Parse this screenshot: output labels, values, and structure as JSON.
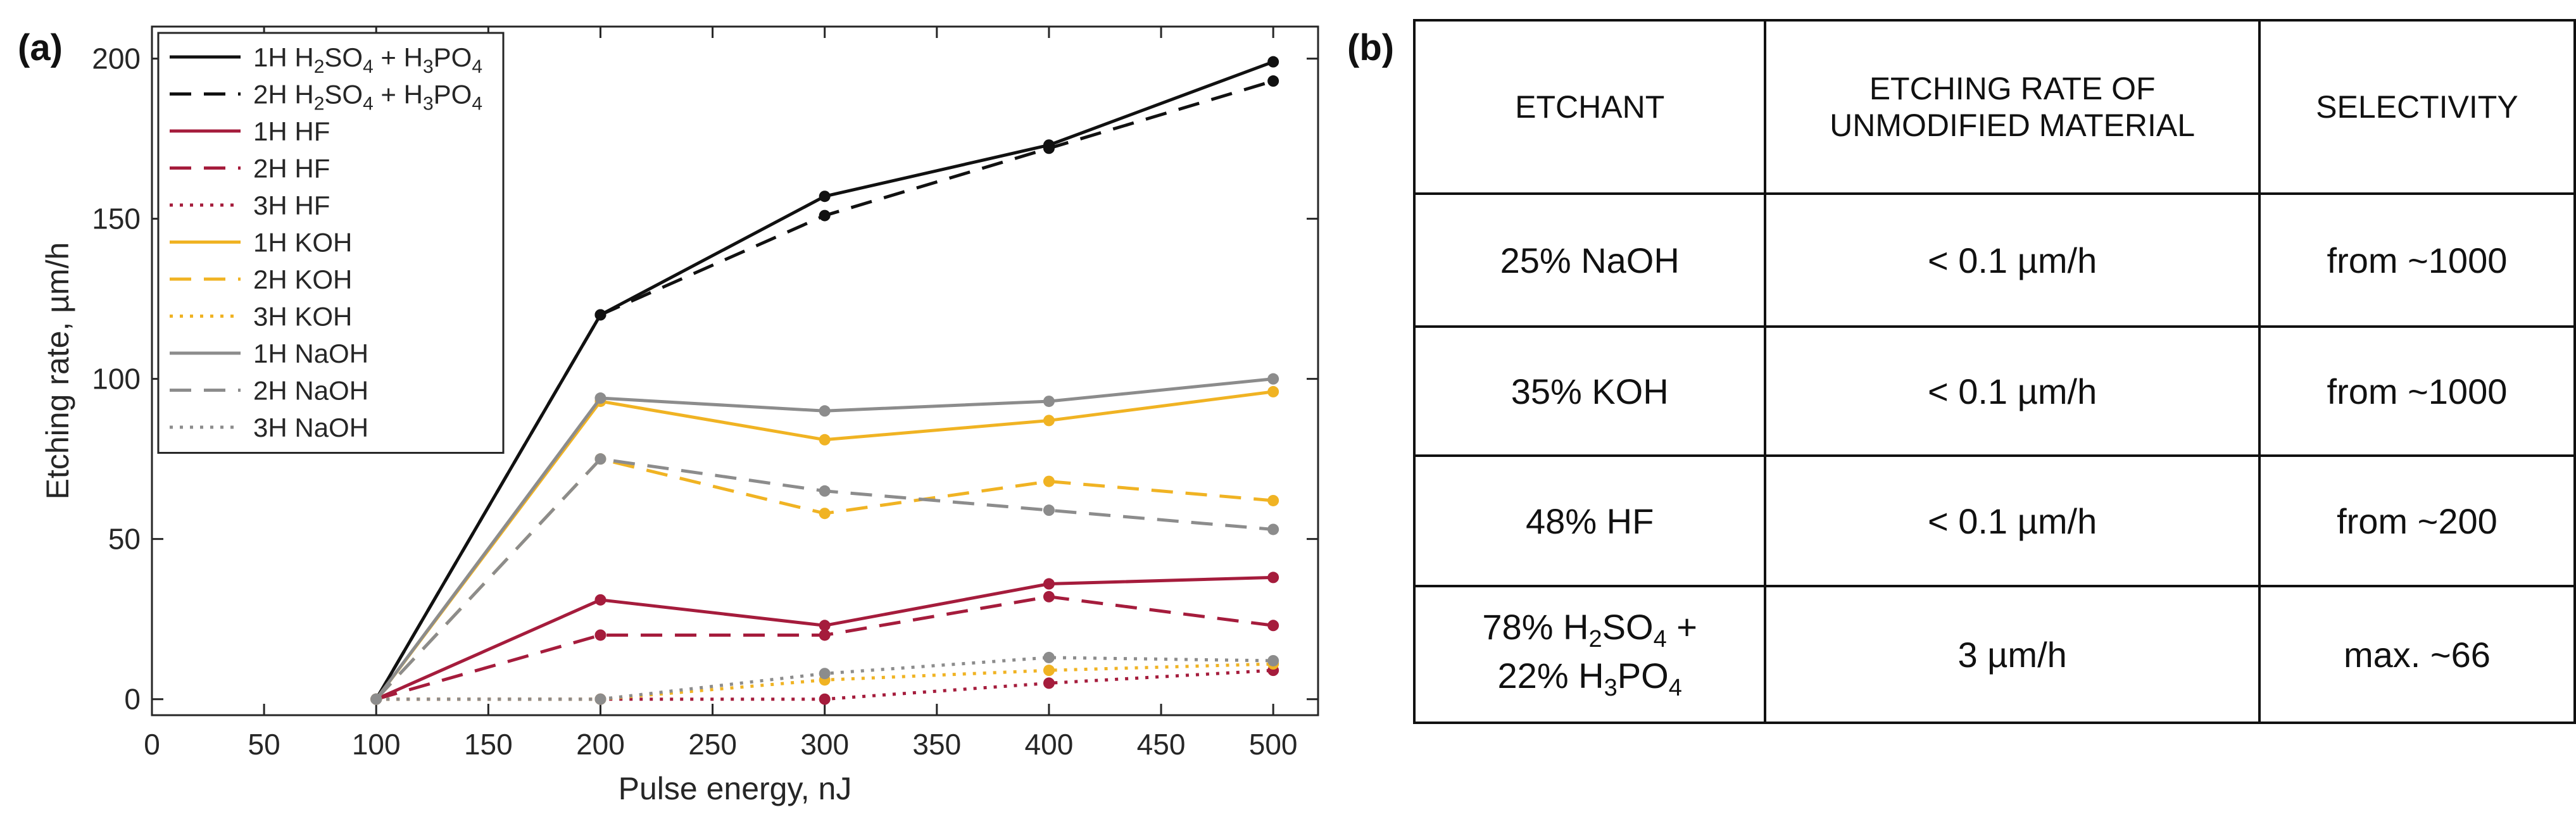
{
  "panel_a_label": "(a)",
  "panel_b_label": "(b)",
  "chart_data": {
    "type": "line",
    "title": "",
    "xlabel": "Pulse energy, nJ",
    "ylabel": "Etching rate, µm/h",
    "xlim": [
      0,
      520
    ],
    "ylim": [
      -5,
      210
    ],
    "xticks": [
      0,
      50,
      100,
      150,
      200,
      250,
      300,
      350,
      400,
      450,
      500
    ],
    "yticks": [
      0,
      50,
      100,
      150,
      200
    ],
    "x": [
      100,
      200,
      300,
      400,
      500
    ],
    "legend_position": "top-left",
    "series": [
      {
        "name": "1H H2SO4 + H3PO4",
        "label_main": "1H H",
        "label_parts": [
          "2",
          "SO",
          "4",
          " + H",
          "3",
          "PO",
          "4"
        ],
        "color": "#111111",
        "dash": "solid",
        "values": [
          0,
          120,
          157,
          173,
          199
        ]
      },
      {
        "name": "2H H2SO4 + H3PO4",
        "label_main": "2H H",
        "label_parts": [
          "2",
          "SO",
          "4",
          " + H",
          "3",
          "PO",
          "4"
        ],
        "color": "#111111",
        "dash": "dashed",
        "values": [
          0,
          120,
          151,
          172,
          193
        ]
      },
      {
        "name": "1H HF",
        "color": "#a51c3c",
        "dash": "solid",
        "values": [
          0,
          31,
          23,
          36,
          38
        ]
      },
      {
        "name": "2H HF",
        "color": "#a51c3c",
        "dash": "dashed",
        "values": [
          0,
          20,
          20,
          32,
          23
        ]
      },
      {
        "name": "3H HF",
        "color": "#a51c3c",
        "dash": "dotted",
        "values": [
          0,
          0,
          0,
          5,
          9
        ]
      },
      {
        "name": "1H KOH",
        "color": "#f0b323",
        "dash": "solid",
        "values": [
          0,
          93,
          81,
          87,
          96
        ]
      },
      {
        "name": "2H KOH",
        "color": "#f0b323",
        "dash": "dashed",
        "values": [
          0,
          75,
          58,
          68,
          62
        ]
      },
      {
        "name": "3H KOH",
        "color": "#f0b323",
        "dash": "dotted",
        "values": [
          0,
          0,
          6,
          9,
          11
        ]
      },
      {
        "name": "1H NaOH",
        "color": "#8c8c8c",
        "dash": "solid",
        "values": [
          0,
          94,
          90,
          93,
          100
        ]
      },
      {
        "name": "2H NaOH",
        "color": "#8c8c8c",
        "dash": "dashed",
        "values": [
          0,
          75,
          65,
          59,
          53
        ]
      },
      {
        "name": "3H NaOH",
        "color": "#8c8c8c",
        "dash": "dotted",
        "values": [
          0,
          0,
          8,
          13,
          12
        ]
      }
    ]
  },
  "table": {
    "headers": [
      "ETCHANT",
      "ETCHING RATE OF",
      "UNMODIFIED MATERIAL",
      "SELECTIVITY"
    ],
    "rows": [
      {
        "etchant": "25% NaOH",
        "rate": "< 0.1 µm/h",
        "selectivity": "from  ~1000"
      },
      {
        "etchant": "35% KOH",
        "rate": "< 0.1 µm/h",
        "selectivity": "from  ~1000"
      },
      {
        "etchant": "48% HF",
        "rate": "< 0.1 µm/h",
        "selectivity": "from ~200"
      },
      {
        "etchant_line1": "78% H",
        "etchant_line1_parts": [
          "2",
          "SO",
          "4",
          " +"
        ],
        "etchant_line2": "22% H",
        "etchant_line2_parts": [
          "3",
          "PO",
          "4"
        ],
        "rate": "3 µm/h",
        "selectivity": "max. ~66"
      }
    ]
  }
}
